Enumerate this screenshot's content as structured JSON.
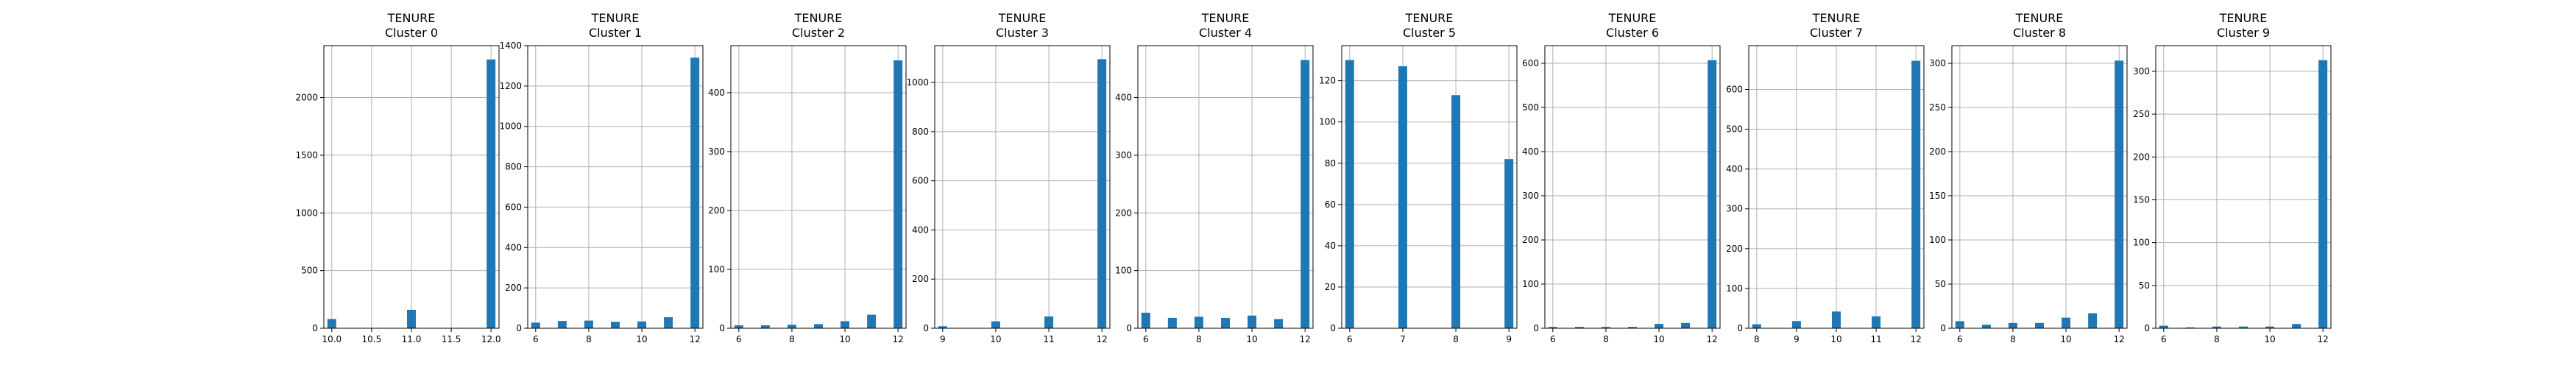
{
  "chart_data": [
    {
      "type": "bar",
      "title": "TENURE",
      "subtitle": "Cluster 0",
      "grid": true,
      "xlim": [
        9.9,
        12.1
      ],
      "ylim": [
        0,
        2450
      ],
      "xticks": [
        10.0,
        10.5,
        11.0,
        11.5,
        12.0
      ],
      "xtick_labels": [
        "10.0",
        "10.5",
        "11.0",
        "11.5",
        "12.0"
      ],
      "yticks": [
        0,
        500,
        1000,
        1500,
        2000
      ],
      "ytick_labels": [
        "0",
        "500",
        "1000",
        "1500",
        "2000"
      ],
      "bars": [
        {
          "x": 10,
          "value": 80
        },
        {
          "x": 11,
          "value": 160
        },
        {
          "x": 12,
          "value": 2330
        }
      ]
    },
    {
      "type": "bar",
      "title": "TENURE",
      "subtitle": "Cluster 1",
      "grid": true,
      "xlim": [
        5.7,
        12.3
      ],
      "ylim": [
        0,
        1400
      ],
      "xticks": [
        6,
        8,
        10,
        12
      ],
      "xtick_labels": [
        "6",
        "8",
        "10",
        "12"
      ],
      "yticks": [
        0,
        200,
        400,
        600,
        800,
        1000,
        1200,
        1400
      ],
      "ytick_labels": [
        "0",
        "200",
        "400",
        "600",
        "800",
        "1000",
        "1200",
        "1400"
      ],
      "bars": [
        {
          "x": 6,
          "value": 28
        },
        {
          "x": 7,
          "value": 36
        },
        {
          "x": 8,
          "value": 38
        },
        {
          "x": 9,
          "value": 32
        },
        {
          "x": 10,
          "value": 34
        },
        {
          "x": 11,
          "value": 55
        },
        {
          "x": 12,
          "value": 1340
        }
      ]
    },
    {
      "type": "bar",
      "title": "TENURE",
      "subtitle": "Cluster 2",
      "grid": true,
      "xlim": [
        5.7,
        12.3
      ],
      "ylim": [
        0,
        480
      ],
      "xticks": [
        6,
        8,
        10,
        12
      ],
      "xtick_labels": [
        "6",
        "8",
        "10",
        "12"
      ],
      "yticks": [
        0,
        100,
        200,
        300,
        400
      ],
      "ytick_labels": [
        "0",
        "100",
        "200",
        "300",
        "400"
      ],
      "bars": [
        {
          "x": 6,
          "value": 5
        },
        {
          "x": 7,
          "value": 5
        },
        {
          "x": 8,
          "value": 6
        },
        {
          "x": 9,
          "value": 7
        },
        {
          "x": 10,
          "value": 12
        },
        {
          "x": 11,
          "value": 23
        },
        {
          "x": 12,
          "value": 455
        }
      ]
    },
    {
      "type": "bar",
      "title": "TENURE",
      "subtitle": "Cluster 3",
      "grid": true,
      "xlim": [
        8.85,
        12.15
      ],
      "ylim": [
        0,
        1150
      ],
      "xticks": [
        9,
        10,
        11,
        12
      ],
      "xtick_labels": [
        "9",
        "10",
        "11",
        "12"
      ],
      "yticks": [
        0,
        200,
        400,
        600,
        800,
        1000
      ],
      "ytick_labels": [
        "0",
        "200",
        "400",
        "600",
        "800",
        "1000"
      ],
      "bars": [
        {
          "x": 9,
          "value": 8
        },
        {
          "x": 10,
          "value": 28
        },
        {
          "x": 11,
          "value": 48
        },
        {
          "x": 12,
          "value": 1095
        }
      ]
    },
    {
      "type": "bar",
      "title": "TENURE",
      "subtitle": "Cluster 4",
      "grid": true,
      "xlim": [
        5.7,
        12.3
      ],
      "ylim": [
        0,
        490
      ],
      "xticks": [
        6,
        8,
        10,
        12
      ],
      "xtick_labels": [
        "6",
        "8",
        "10",
        "12"
      ],
      "yticks": [
        0,
        100,
        200,
        300,
        400
      ],
      "ytick_labels": [
        "0",
        "100",
        "200",
        "300",
        "400"
      ],
      "bars": [
        {
          "x": 6,
          "value": 27
        },
        {
          "x": 7,
          "value": 18
        },
        {
          "x": 8,
          "value": 20
        },
        {
          "x": 9,
          "value": 18
        },
        {
          "x": 10,
          "value": 22
        },
        {
          "x": 11,
          "value": 16
        },
        {
          "x": 12,
          "value": 465
        }
      ]
    },
    {
      "type": "bar",
      "title": "TENURE",
      "subtitle": "Cluster 5",
      "grid": true,
      "xlim": [
        5.85,
        9.15
      ],
      "ylim": [
        0,
        137
      ],
      "xticks": [
        6,
        7,
        8,
        9
      ],
      "xtick_labels": [
        "6",
        "7",
        "8",
        "9"
      ],
      "yticks": [
        0,
        20,
        40,
        60,
        80,
        100,
        120
      ],
      "ytick_labels": [
        "0",
        "20",
        "40",
        "60",
        "80",
        "100",
        "120"
      ],
      "bars": [
        {
          "x": 6,
          "value": 130
        },
        {
          "x": 7,
          "value": 127
        },
        {
          "x": 8,
          "value": 113
        },
        {
          "x": 9,
          "value": 82
        }
      ]
    },
    {
      "type": "bar",
      "title": "TENURE",
      "subtitle": "Cluster 6",
      "grid": true,
      "xlim": [
        5.7,
        12.3
      ],
      "ylim": [
        0,
        640
      ],
      "xticks": [
        6,
        8,
        10,
        12
      ],
      "xtick_labels": [
        "6",
        "8",
        "10",
        "12"
      ],
      "yticks": [
        0,
        100,
        200,
        300,
        400,
        500,
        600
      ],
      "ytick_labels": [
        "0",
        "100",
        "200",
        "300",
        "400",
        "500",
        "600"
      ],
      "bars": [
        {
          "x": 6,
          "value": 3
        },
        {
          "x": 7,
          "value": 3
        },
        {
          "x": 8,
          "value": 3
        },
        {
          "x": 9,
          "value": 3
        },
        {
          "x": 10,
          "value": 10
        },
        {
          "x": 11,
          "value": 12
        },
        {
          "x": 12,
          "value": 607
        }
      ]
    },
    {
      "type": "bar",
      "title": "TENURE",
      "subtitle": "Cluster 7",
      "grid": true,
      "xlim": [
        7.8,
        12.2
      ],
      "ylim": [
        0,
        710
      ],
      "xticks": [
        8,
        9,
        10,
        11,
        12
      ],
      "xtick_labels": [
        "8",
        "9",
        "10",
        "11",
        "12"
      ],
      "yticks": [
        0,
        100,
        200,
        300,
        400,
        500,
        600
      ],
      "ytick_labels": [
        "0",
        "100",
        "200",
        "300",
        "400",
        "500",
        "600"
      ],
      "bars": [
        {
          "x": 8,
          "value": 10
        },
        {
          "x": 9,
          "value": 18
        },
        {
          "x": 10,
          "value": 42
        },
        {
          "x": 11,
          "value": 30
        },
        {
          "x": 12,
          "value": 672
        }
      ]
    },
    {
      "type": "bar",
      "title": "TENURE",
      "subtitle": "Cluster 8",
      "grid": true,
      "xlim": [
        5.7,
        12.3
      ],
      "ylim": [
        0,
        320
      ],
      "xticks": [
        6,
        8,
        10,
        12
      ],
      "xtick_labels": [
        "6",
        "8",
        "10",
        "12"
      ],
      "yticks": [
        0,
        50,
        100,
        150,
        200,
        250,
        300
      ],
      "ytick_labels": [
        "0",
        "50",
        "100",
        "150",
        "200",
        "250",
        "300"
      ],
      "bars": [
        {
          "x": 6,
          "value": 8
        },
        {
          "x": 7,
          "value": 4
        },
        {
          "x": 8,
          "value": 6
        },
        {
          "x": 9,
          "value": 6
        },
        {
          "x": 10,
          "value": 12
        },
        {
          "x": 11,
          "value": 17
        },
        {
          "x": 12,
          "value": 303
        }
      ]
    },
    {
      "type": "bar",
      "title": "TENURE",
      "subtitle": "Cluster 9",
      "grid": true,
      "xlim": [
        5.7,
        12.3
      ],
      "ylim": [
        0,
        330
      ],
      "xticks": [
        6,
        8,
        10,
        12
      ],
      "xtick_labels": [
        "6",
        "8",
        "10",
        "12"
      ],
      "yticks": [
        0,
        50,
        100,
        150,
        200,
        250,
        300
      ],
      "ytick_labels": [
        "0",
        "50",
        "100",
        "150",
        "200",
        "250",
        "300"
      ],
      "bars": [
        {
          "x": 6,
          "value": 3
        },
        {
          "x": 7,
          "value": 1
        },
        {
          "x": 8,
          "value": 2
        },
        {
          "x": 9,
          "value": 2
        },
        {
          "x": 10,
          "value": 2
        },
        {
          "x": 11,
          "value": 5
        },
        {
          "x": 12,
          "value": 313
        }
      ]
    }
  ],
  "colors": {
    "bar": "#1f77b4",
    "grid": "#b0b0b0",
    "axis": "#000000"
  }
}
